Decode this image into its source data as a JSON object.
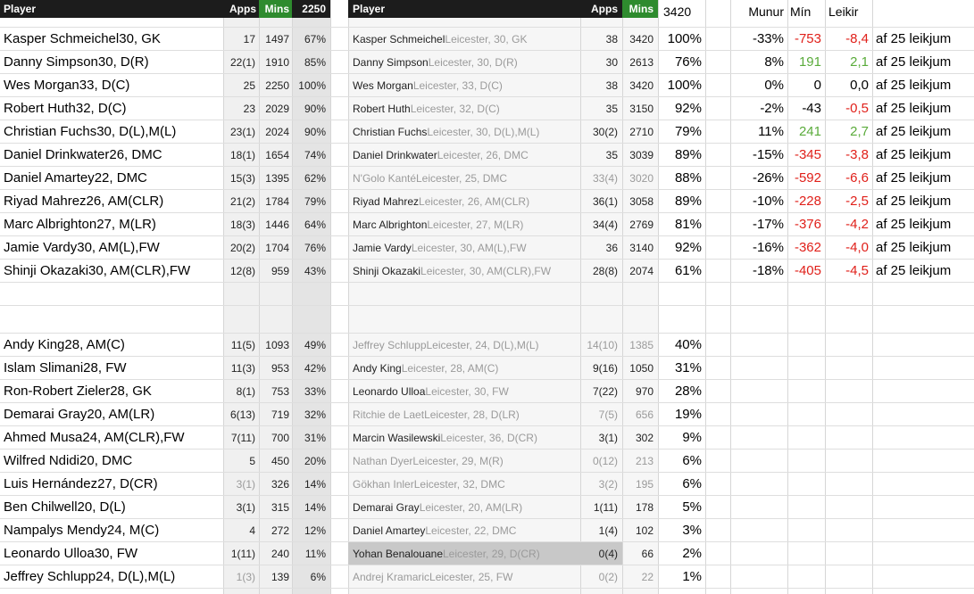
{
  "left_header": {
    "player": "Player",
    "apps": "Apps",
    "mins": "Mins",
    "total": "2250"
  },
  "right_header": {
    "player": "Player",
    "apps": "Apps",
    "mins": "Mins",
    "total": "3420"
  },
  "compare_header": {
    "diff": "Munur",
    "min": "Mín",
    "games": "Leikir"
  },
  "top_rows": [
    {
      "name": "Kasper Schmeichel30, GK",
      "apps": "17",
      "mins": "1497",
      "pct": "67%",
      "r_player": "Kasper Schmeichel",
      "r_sub": "Leicester, 30, GK",
      "r_apps": "38",
      "r_mins": "3420",
      "r_pct": "100%",
      "diff": "-33%",
      "min_diff": "-753",
      "min_color": "red",
      "games": "-8,4",
      "games_color": "red",
      "suffix": "af 25 leikjum"
    },
    {
      "name": "Danny Simpson30, D(R)",
      "apps": "22(1)",
      "mins": "1910",
      "pct": "85%",
      "r_player": "Danny Simpson",
      "r_sub": "Leicester, 30, D(R)",
      "r_apps": "30",
      "r_mins": "2613",
      "r_pct": "76%",
      "diff": "8%",
      "min_diff": "191",
      "min_color": "green",
      "games": "2,1",
      "games_color": "green",
      "suffix": "af 25 leikjum"
    },
    {
      "name": "Wes Morgan33, D(C)",
      "apps": "25",
      "mins": "2250",
      "pct": "100%",
      "r_player": "Wes Morgan",
      "r_sub": "Leicester, 33, D(C)",
      "r_apps": "38",
      "r_mins": "3420",
      "r_pct": "100%",
      "diff": "0%",
      "min_diff": "0",
      "min_color": "black",
      "games": "0,0",
      "games_color": "black",
      "suffix": "af 25 leikjum"
    },
    {
      "name": "Robert Huth32, D(C)",
      "apps": "23",
      "mins": "2029",
      "pct": "90%",
      "r_player": "Robert Huth",
      "r_sub": "Leicester, 32, D(C)",
      "r_apps": "35",
      "r_mins": "3150",
      "r_pct": "92%",
      "diff": "-2%",
      "min_diff": "-43",
      "min_color": "black",
      "games": "-0,5",
      "games_color": "red",
      "suffix": "af 25 leikjum"
    },
    {
      "name": "Christian Fuchs30, D(L),M(L)",
      "apps": "23(1)",
      "mins": "2024",
      "pct": "90%",
      "r_player": "Christian Fuchs",
      "r_sub": "Leicester, 30, D(L),M(L)",
      "r_apps": "30(2)",
      "r_mins": "2710",
      "r_pct": "79%",
      "diff": "11%",
      "min_diff": "241",
      "min_color": "green",
      "games": "2,7",
      "games_color": "green",
      "suffix": "af 25 leikjum"
    },
    {
      "name": "Daniel Drinkwater26, DMC",
      "apps": "18(1)",
      "mins": "1654",
      "pct": "74%",
      "r_player": "Daniel Drinkwater",
      "r_sub": "Leicester, 26, DMC",
      "r_apps": "35",
      "r_mins": "3039",
      "r_pct": "89%",
      "diff": "-15%",
      "min_diff": "-345",
      "min_color": "red",
      "games": "-3,8",
      "games_color": "red",
      "suffix": "af 25 leikjum"
    },
    {
      "name": "Daniel Amartey22, DMC",
      "apps": "15(3)",
      "mins": "1395",
      "pct": "62%",
      "r_player": "N'Golo Kanté",
      "r_sub": "Leicester, 25, DMC",
      "r_apps": "33(4)",
      "r_mins": "3020",
      "r_pct": "88%",
      "r_grey": true,
      "diff": "-26%",
      "min_diff": "-592",
      "min_color": "red",
      "games": "-6,6",
      "games_color": "red",
      "suffix": "af 25 leikjum"
    },
    {
      "name": "Riyad Mahrez26, AM(CLR)",
      "apps": "21(2)",
      "mins": "1784",
      "pct": "79%",
      "r_player": "Riyad Mahrez",
      "r_sub": "Leicester, 26, AM(CLR)",
      "r_apps": "36(1)",
      "r_mins": "3058",
      "r_pct": "89%",
      "diff": "-10%",
      "min_diff": "-228",
      "min_color": "red",
      "games": "-2,5",
      "games_color": "red",
      "suffix": "af 25 leikjum"
    },
    {
      "name": "Marc Albrighton27, M(LR)",
      "apps": "18(3)",
      "mins": "1446",
      "pct": "64%",
      "r_player": "Marc Albrighton",
      "r_sub": "Leicester, 27, M(LR)",
      "r_apps": "34(4)",
      "r_mins": "2769",
      "r_pct": "81%",
      "diff": "-17%",
      "min_diff": "-376",
      "min_color": "red",
      "games": "-4,2",
      "games_color": "red",
      "suffix": "af 25 leikjum"
    },
    {
      "name": "Jamie Vardy30, AM(L),FW",
      "apps": "20(2)",
      "mins": "1704",
      "pct": "76%",
      "r_player": "Jamie Vardy",
      "r_sub": "Leicester, 30, AM(L),FW",
      "r_apps": "36",
      "r_mins": "3140",
      "r_pct": "92%",
      "diff": "-16%",
      "min_diff": "-362",
      "min_color": "red",
      "games": "-4,0",
      "games_color": "red",
      "suffix": "af 25 leikjum"
    },
    {
      "name": "Shinji Okazaki30, AM(CLR),FW",
      "apps": "12(8)",
      "mins": "959",
      "pct": "43%",
      "r_player": "Shinji Okazaki",
      "r_sub": "Leicester, 30, AM(CLR),FW",
      "r_apps": "28(8)",
      "r_mins": "2074",
      "r_pct": "61%",
      "diff": "-18%",
      "min_diff": "-405",
      "min_color": "red",
      "games": "-4,5",
      "games_color": "red",
      "suffix": "af 25 leikjum"
    }
  ],
  "bottom_rows": [
    {
      "name": "Andy King28, AM(C)",
      "apps": "11(5)",
      "mins": "1093",
      "pct": "49%",
      "r_player": "Jeffrey Schlupp",
      "r_sub": "Leicester, 24, D(L),M(L)",
      "r_apps": "14(10)",
      "r_mins": "1385",
      "r_pct": "40%",
      "r_grey": true
    },
    {
      "name": "Islam Slimani28, FW",
      "apps": "11(3)",
      "mins": "953",
      "pct": "42%",
      "r_player": "Andy King",
      "r_sub": "Leicester, 28, AM(C)",
      "r_apps": "9(16)",
      "r_mins": "1050",
      "r_pct": "31%"
    },
    {
      "name": "Ron-Robert Zieler28, GK",
      "apps": "8(1)",
      "mins": "753",
      "pct": "33%",
      "r_player": "Leonardo Ulloa",
      "r_sub": "Leicester, 30, FW",
      "r_apps": "7(22)",
      "r_mins": "970",
      "r_pct": "28%"
    },
    {
      "name": "Demarai Gray20, AM(LR)",
      "apps": "6(13)",
      "mins": "719",
      "pct": "32%",
      "r_player": "Ritchie de Laet",
      "r_sub": "Leicester, 28, D(LR)",
      "r_apps": "7(5)",
      "r_mins": "656",
      "r_pct": "19%",
      "r_grey": true
    },
    {
      "name": "Ahmed Musa24, AM(CLR),FW",
      "apps": "7(11)",
      "mins": "700",
      "pct": "31%",
      "r_player": "Marcin Wasilewski",
      "r_sub": "Leicester, 36, D(CR)",
      "r_apps": "3(1)",
      "r_mins": "302",
      "r_pct": "9%"
    },
    {
      "name": "Wilfred Ndidi20, DMC",
      "apps": "5",
      "mins": "450",
      "pct": "20%",
      "r_player": "Nathan Dyer",
      "r_sub": "Leicester, 29, M(R)",
      "r_apps": "0(12)",
      "r_mins": "213",
      "r_pct": "6%",
      "r_grey": true
    },
    {
      "name": "Luis Hernández27, D(CR)",
      "apps": "3(1)",
      "mins": "326",
      "pct": "14%",
      "grey": true,
      "r_player": "Gökhan Inler",
      "r_sub": "Leicester, 32, DMC",
      "r_apps": "3(2)",
      "r_mins": "195",
      "r_pct": "6%",
      "r_grey": true
    },
    {
      "name": "Ben Chilwell20, D(L)",
      "apps": "3(1)",
      "mins": "315",
      "pct": "14%",
      "r_player": "Demarai Gray",
      "r_sub": "Leicester, 20, AM(LR)",
      "r_apps": "1(11)",
      "r_mins": "178",
      "r_pct": "5%"
    },
    {
      "name": "Nampalys Mendy24, M(C)",
      "apps": "4",
      "mins": "272",
      "pct": "12%",
      "r_player": "Daniel Amartey",
      "r_sub": "Leicester, 22, DMC",
      "r_apps": "1(4)",
      "r_mins": "102",
      "r_pct": "3%"
    },
    {
      "name": "Leonardo Ulloa30, FW",
      "apps": "1(11)",
      "mins": "240",
      "pct": "11%",
      "r_player": "Yohan Benalouane",
      "r_sub": "Leicester, 29, D(CR)",
      "r_apps": "0(4)",
      "r_mins": "66",
      "r_pct": "2%",
      "r_highlight": true
    },
    {
      "name": "Jeffrey Schlupp24, D(L),M(L)",
      "apps": "1(3)",
      "mins": "139",
      "pct": "6%",
      "grey": true,
      "r_player": "Andrej Kramaric",
      "r_sub": "Leicester, 25, FW",
      "r_apps": "0(2)",
      "r_mins": "22",
      "r_pct": "1%",
      "r_grey": true
    }
  ],
  "colors": {
    "header_bg": "#1c1c1c",
    "mins_header_bg": "#2e8b2e",
    "left_band": "#f0f0f0",
    "pct_band": "#e4e4e4",
    "grey_text": "#9a9a9a",
    "red": "#e0201a",
    "green": "#5aab3b",
    "highlight": "#c8c8c8"
  }
}
